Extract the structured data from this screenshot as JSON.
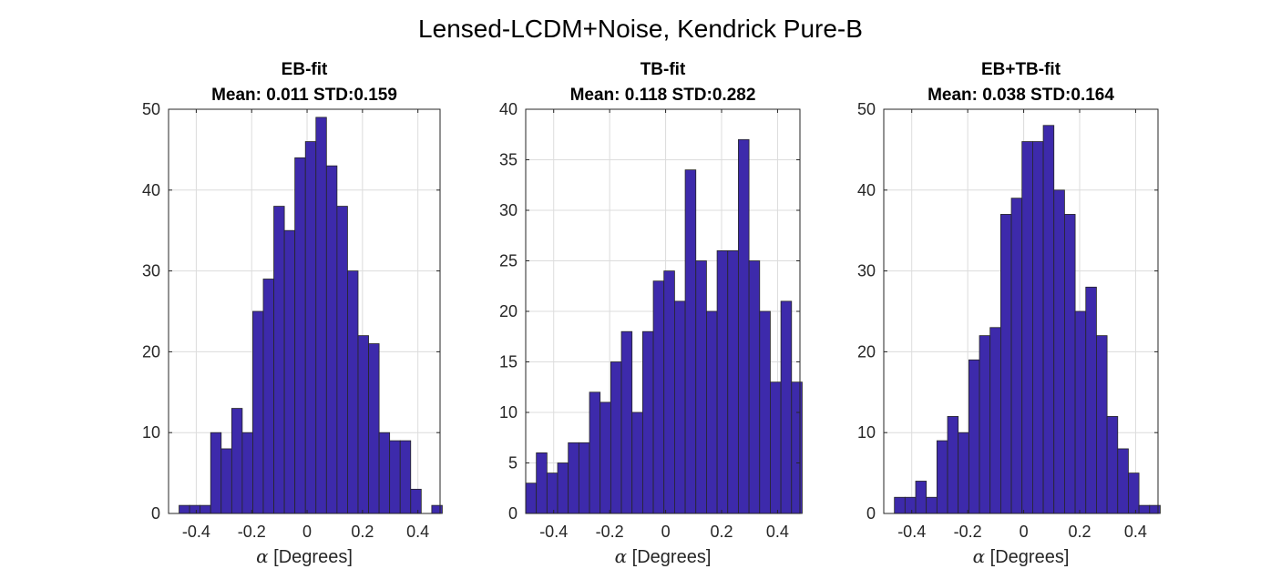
{
  "figure_title": "Lensed-LCDM+Noise, Kendrick Pure-B",
  "colors": {
    "bar_fill": "#3d2aab",
    "edge": "#262626",
    "grid": "#dcdcdc"
  },
  "chart_data": [
    {
      "type": "histogram",
      "title_line1": "EB-fit",
      "title_line2": "Mean: 0.011 STD:0.159",
      "xlabel_symbol": "α",
      "xlabel_text": " [Degrees]",
      "xlim": [
        -0.5,
        0.48
      ],
      "ylim": [
        0,
        50
      ],
      "xticks": [
        -0.4,
        -0.2,
        0,
        0.2,
        0.4
      ],
      "xtick_labels": [
        "-0.4",
        "-0.2",
        "0",
        "0.2",
        "0.4"
      ],
      "yticks": [
        0,
        10,
        20,
        30,
        40,
        50
      ],
      "ytick_labels": [
        "0",
        "10",
        "20",
        "30",
        "40",
        "50"
      ],
      "grid": true,
      "bin_edges": [
        -0.462,
        -0.424,
        -0.386,
        -0.348,
        -0.31,
        -0.272,
        -0.234,
        -0.196,
        -0.158,
        -0.12,
        -0.082,
        -0.044,
        -0.006,
        0.032,
        0.07,
        0.108,
        0.146,
        0.184,
        0.222,
        0.26,
        0.298,
        0.336,
        0.374,
        0.412,
        0.45,
        0.488
      ],
      "counts": [
        1,
        1,
        1,
        10,
        8,
        13,
        10,
        25,
        29,
        38,
        35,
        44,
        46,
        49,
        43,
        38,
        30,
        22,
        21,
        10,
        9,
        9,
        3,
        0,
        1
      ]
    },
    {
      "type": "histogram",
      "title_line1": "TB-fit",
      "title_line2": "Mean: 0.118 STD:0.282",
      "xlabel_symbol": "α",
      "xlabel_text": " [Degrees]",
      "xlim": [
        -0.5,
        0.48
      ],
      "ylim": [
        0,
        40
      ],
      "xticks": [
        -0.4,
        -0.2,
        0,
        0.2,
        0.4
      ],
      "xtick_labels": [
        "-0.4",
        "-0.2",
        "0",
        "0.2",
        "0.4"
      ],
      "yticks": [
        0,
        5,
        10,
        15,
        20,
        25,
        30,
        35,
        40
      ],
      "ytick_labels": [
        "0",
        "5",
        "10",
        "15",
        "20",
        "25",
        "30",
        "35",
        "40"
      ],
      "grid": true,
      "bin_edges": [
        -0.5,
        -0.462,
        -0.424,
        -0.386,
        -0.348,
        -0.31,
        -0.272,
        -0.234,
        -0.196,
        -0.158,
        -0.12,
        -0.082,
        -0.044,
        -0.006,
        0.032,
        0.07,
        0.108,
        0.146,
        0.184,
        0.222,
        0.26,
        0.298,
        0.336,
        0.374,
        0.412,
        0.45,
        0.488
      ],
      "counts": [
        3,
        6,
        4,
        5,
        7,
        7,
        12,
        11,
        15,
        18,
        10,
        18,
        23,
        24,
        21,
        34,
        25,
        20,
        26,
        26,
        37,
        25,
        20,
        13,
        21,
        13
      ]
    },
    {
      "type": "histogram",
      "title_line1": "EB+TB-fit",
      "title_line2": "Mean: 0.038 STD:0.164",
      "xlabel_symbol": "α",
      "xlabel_text": " [Degrees]",
      "xlim": [
        -0.5,
        0.48
      ],
      "ylim": [
        0,
        50
      ],
      "xticks": [
        -0.4,
        -0.2,
        0,
        0.2,
        0.4
      ],
      "xtick_labels": [
        "-0.4",
        "-0.2",
        "0",
        "0.2",
        "0.4"
      ],
      "yticks": [
        0,
        10,
        20,
        30,
        40,
        50
      ],
      "ytick_labels": [
        "0",
        "10",
        "20",
        "30",
        "40",
        "50"
      ],
      "grid": true,
      "bin_edges": [
        -0.462,
        -0.424,
        -0.386,
        -0.348,
        -0.31,
        -0.272,
        -0.234,
        -0.196,
        -0.158,
        -0.12,
        -0.082,
        -0.044,
        -0.006,
        0.032,
        0.07,
        0.108,
        0.146,
        0.184,
        0.222,
        0.26,
        0.298,
        0.336,
        0.374,
        0.412,
        0.45,
        0.488
      ],
      "counts": [
        2,
        2,
        4,
        2,
        9,
        12,
        10,
        19,
        22,
        23,
        37,
        39,
        46,
        46,
        48,
        40,
        37,
        25,
        28,
        22,
        12,
        8,
        5,
        1,
        1
      ]
    }
  ]
}
